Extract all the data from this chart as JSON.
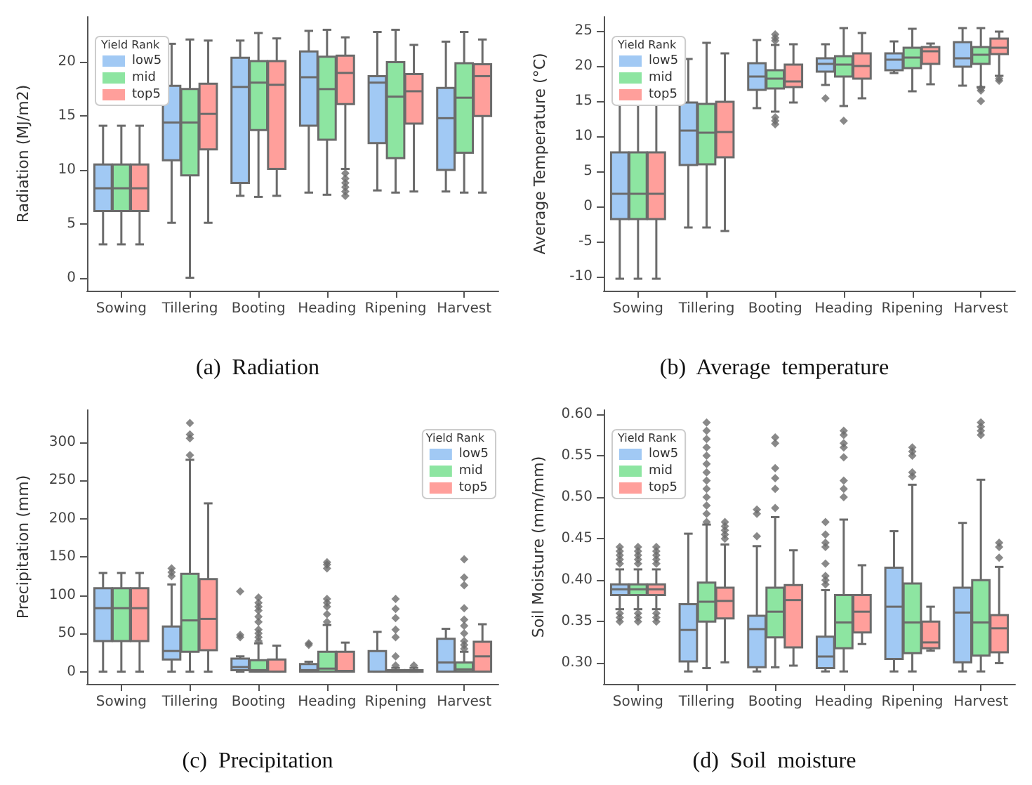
{
  "chart_data": [
    {
      "type": "box",
      "title": "(a)  Radiation",
      "ylabel": "Radiation (MJ/m2)",
      "legend_title": "Yield Rank",
      "legend": "top left",
      "grid": false,
      "categories": [
        "Sowing",
        "Tillering",
        "Booting",
        "Heading",
        "Ripening",
        "Harvest"
      ],
      "ylim": [
        -1.2,
        24.2
      ],
      "yticks": [
        0,
        5,
        10,
        15,
        20
      ],
      "series": [
        {
          "name": "low5",
          "color": "#a1c9f4",
          "boxes": [
            {
              "low": 3.1,
              "q1": 6.2,
              "median": 8.3,
              "q3": 10.5,
              "high": 14.1
            },
            {
              "low": 5.1,
              "q1": 10.9,
              "median": 14.4,
              "q3": 17.8,
              "high": 21.7
            },
            {
              "low": 7.6,
              "q1": 8.8,
              "median": 17.7,
              "q3": 20.4,
              "high": 22.0
            },
            {
              "low": 7.9,
              "q1": 14.1,
              "median": 18.6,
              "q3": 21.0,
              "high": 22.9
            },
            {
              "low": 8.1,
              "q1": 12.5,
              "median": 18.1,
              "q3": 18.7,
              "high": 22.8
            },
            {
              "low": 8.0,
              "q1": 10.0,
              "median": 14.8,
              "q3": 17.6,
              "high": 21.9
            }
          ]
        },
        {
          "name": "mid",
          "color": "#8de5a1",
          "boxes": [
            {
              "low": 3.1,
              "q1": 6.2,
              "median": 8.3,
              "q3": 10.5,
              "high": 14.1
            },
            {
              "low": 0,
              "q1": 9.5,
              "median": 14.4,
              "q3": 17.5,
              "high": 22.1
            },
            {
              "low": 7.5,
              "q1": 13.7,
              "median": 18.1,
              "q3": 20.1,
              "high": 22.7
            },
            {
              "low": 7.7,
              "q1": 12.8,
              "median": 17.5,
              "q3": 20.5,
              "high": 23.0
            },
            {
              "low": 7.9,
              "q1": 11.1,
              "median": 16.8,
              "q3": 20.0,
              "high": 23.0
            },
            {
              "low": 7.9,
              "q1": 11.6,
              "median": 16.7,
              "q3": 19.9,
              "high": 22.8
            }
          ]
        },
        {
          "name": "top5",
          "color": "#ff9f9b",
          "boxes": [
            {
              "low": 3.1,
              "q1": 6.2,
              "median": 8.3,
              "q3": 10.5,
              "high": 14.1
            },
            {
              "low": 5.1,
              "q1": 11.9,
              "median": 15.2,
              "q3": 18.0,
              "high": 22.0
            },
            {
              "low": 7.6,
              "q1": 10.1,
              "median": 17.9,
              "q3": 20.1,
              "high": 22.2
            },
            {
              "low": 10.1,
              "q1": 16.1,
              "median": 19.0,
              "q3": 20.6,
              "high": 22.3,
              "outliers": [
                7.6,
                8.0,
                8.4,
                8.8,
                9.2,
                9.7
              ]
            },
            {
              "low": 8.0,
              "q1": 14.3,
              "median": 17.3,
              "q3": 18.9,
              "high": 21.6
            },
            {
              "low": 7.9,
              "q1": 15.0,
              "median": 18.7,
              "q3": 19.8,
              "high": 22.1
            }
          ]
        }
      ]
    },
    {
      "type": "box",
      "title": "(b)  Average  temperature",
      "ylabel": "Average Temperature (°C)",
      "legend_title": "Yield Rank",
      "legend": "top left",
      "grid": false,
      "categories": [
        "Sowing",
        "Tillering",
        "Booting",
        "Heading",
        "Ripening",
        "Harvest"
      ],
      "ylim": [
        -12,
        27
      ],
      "yticks": [
        -10,
        -5,
        0,
        5,
        10,
        15,
        20,
        25
      ],
      "series": [
        {
          "name": "low5",
          "color": "#a1c9f4",
          "boxes": [
            {
              "low": -10.3,
              "q1": -1.8,
              "median": 1.8,
              "q3": 7.7,
              "high": 16.3
            },
            {
              "low": -3,
              "q1": 5.9,
              "median": 10.8,
              "q3": 14.8,
              "high": 21.0
            },
            {
              "low": 14.0,
              "q1": 16.6,
              "median": 18.5,
              "q3": 20.4,
              "high": 23.7
            },
            {
              "low": 17.3,
              "q1": 19.2,
              "median": 20.3,
              "q3": 21.1,
              "high": 23.1,
              "outliers": [
                15.4
              ]
            },
            {
              "low": 19.0,
              "q1": 19.4,
              "median": 20.9,
              "q3": 21.8,
              "high": 23.5
            },
            {
              "low": 17.2,
              "q1": 19.9,
              "median": 21.1,
              "q3": 23.4,
              "high": 25.4
            }
          ]
        },
        {
          "name": "mid",
          "color": "#8de5a1",
          "boxes": [
            {
              "low": -10.3,
              "q1": -1.8,
              "median": 1.8,
              "q3": 7.7,
              "high": 16.3
            },
            {
              "low": -3,
              "q1": 6.0,
              "median": 10.5,
              "q3": 14.6,
              "high": 23.3
            },
            {
              "low": 13.5,
              "q1": 16.8,
              "median": 18.2,
              "q3": 19.4,
              "high": 23.0,
              "outliers": [
                11.7,
                12.2,
                12.7,
                23.6,
                24.0,
                24.5
              ]
            },
            {
              "low": 14.3,
              "q1": 18.5,
              "median": 20.2,
              "q3": 21.4,
              "high": 25.4,
              "outliers": [
                12.2
              ]
            },
            {
              "low": 16.4,
              "q1": 19.7,
              "median": 21.2,
              "q3": 22.6,
              "high": 25.3
            },
            {
              "low": 17.0,
              "q1": 20.3,
              "median": 21.6,
              "q3": 22.7,
              "high": 25.4,
              "outliers": [
                15.0,
                16.5,
                16.8
              ]
            }
          ]
        },
        {
          "name": "top5",
          "color": "#ff9f9b",
          "boxes": [
            {
              "low": -10.3,
              "q1": -1.8,
              "median": 1.8,
              "q3": 7.7,
              "high": 16.3
            },
            {
              "low": -3.5,
              "q1": 7.0,
              "median": 10.6,
              "q3": 14.9,
              "high": 21.8
            },
            {
              "low": 14.8,
              "q1": 17.0,
              "median": 17.8,
              "q3": 20.2,
              "high": 23.1
            },
            {
              "low": 15.4,
              "q1": 18.2,
              "median": 20.0,
              "q3": 21.8,
              "high": 24.7
            },
            {
              "low": 17.4,
              "q1": 20.3,
              "median": 22.1,
              "q3": 22.7,
              "high": 23.2
            },
            {
              "low": 18.6,
              "q1": 21.7,
              "median": 22.6,
              "q3": 23.9,
              "high": 24.9,
              "outliers": [
                17.9,
                18.2
              ]
            }
          ]
        }
      ]
    },
    {
      "type": "box",
      "title": "(c)  Precipitation",
      "ylabel": "Precipitation (mm)",
      "legend_title": "Yield Rank",
      "legend": "top right",
      "grid": false,
      "categories": [
        "Sowing",
        "Tillering",
        "Booting",
        "Heading",
        "Ripening",
        "Harvest"
      ],
      "ylim": [
        -16,
        342
      ],
      "yticks": [
        0,
        50,
        100,
        150,
        200,
        250,
        300
      ],
      "series": [
        {
          "name": "low5",
          "color": "#a1c9f4",
          "boxes": [
            {
              "low": 0,
              "q1": 40,
              "median": 83,
              "q3": 109,
              "high": 129
            },
            {
              "low": 0,
              "q1": 16,
              "median": 27,
              "q3": 59,
              "high": 114,
              "outliers": [
                125,
                130,
                135
              ]
            },
            {
              "low": 0,
              "q1": 2,
              "median": 6,
              "q3": 17,
              "high": 20,
              "outliers": [
                45,
                48,
                105
              ]
            },
            {
              "low": 0,
              "q1": 0,
              "median": 2,
              "q3": 10,
              "high": 13,
              "outliers": [
                35,
                37
              ]
            },
            {
              "low": 0,
              "q1": 0,
              "median": 0,
              "q3": 27,
              "high": 52
            },
            {
              "low": 0,
              "q1": 0,
              "median": 12,
              "q3": 43,
              "high": 56
            }
          ]
        },
        {
          "name": "mid",
          "color": "#8de5a1",
          "boxes": [
            {
              "low": 0,
              "q1": 40,
              "median": 83,
              "q3": 109,
              "high": 129
            },
            {
              "low": 0,
              "q1": 26,
              "median": 67,
              "q3": 128,
              "high": 277,
              "outliers": [
                283,
                305,
                310,
                325
              ]
            },
            {
              "low": 0,
              "q1": 0,
              "median": 2,
              "q3": 15,
              "high": 37,
              "outliers": [
                40,
                45,
                50,
                55,
                65,
                72,
                80,
                85,
                90,
                97
              ]
            },
            {
              "low": 0,
              "q1": 0,
              "median": 4,
              "q3": 26,
              "high": 61,
              "outliers": [
                65,
                75,
                85,
                90,
                95,
                135,
                140,
                143
              ]
            },
            {
              "low": 0,
              "q1": 0,
              "median": 0,
              "q3": 2,
              "high": 5,
              "outliers": [
                8,
                20,
                45,
                55,
                70,
                82,
                95
              ]
            },
            {
              "low": 0,
              "q1": 0,
              "median": 3,
              "q3": 12,
              "high": 26,
              "outliers": [
                30,
                35,
                40,
                50,
                60,
                68,
                83,
                113,
                123,
                147
              ]
            }
          ]
        },
        {
          "name": "top5",
          "color": "#ff9f9b",
          "boxes": [
            {
              "low": 0,
              "q1": 40,
              "median": 83,
              "q3": 109,
              "high": 129
            },
            {
              "low": 0,
              "q1": 28,
              "median": 69,
              "q3": 121,
              "high": 220
            },
            {
              "low": 0,
              "q1": 0,
              "median": 0,
              "q3": 16,
              "high": 34
            },
            {
              "low": 0,
              "q1": 0,
              "median": 1,
              "q3": 26,
              "high": 38
            },
            {
              "low": 0,
              "q1": 0,
              "median": 0,
              "q3": 2,
              "high": 5,
              "outliers": [
                8
              ]
            },
            {
              "low": 0,
              "q1": 0,
              "median": 20,
              "q3": 39,
              "high": 62
            }
          ]
        }
      ]
    },
    {
      "type": "box",
      "title": "(d)  Soil  moisture",
      "ylabel": "Soil Moisture (mm/mm)",
      "legend_title": "Yield Rank",
      "legend": "top left",
      "grid": false,
      "categories": [
        "Sowing",
        "Tillering",
        "Booting",
        "Heading",
        "Ripening",
        "Harvest"
      ],
      "ylim": [
        0.275,
        0.605
      ],
      "yticks": [
        {
          "value": 0.3,
          "label": "0.30"
        },
        {
          "value": 0.35,
          "label": "0.35"
        },
        {
          "value": 0.4,
          "label": "0.40"
        },
        {
          "value": 0.45,
          "label": "0.45"
        },
        {
          "value": 0.5,
          "label": "0.50"
        },
        {
          "value": 0.55,
          "label": "0.55"
        },
        {
          "value": 0.6,
          "label": "0.60"
        }
      ],
      "series": [
        {
          "name": "low5",
          "color": "#a1c9f4",
          "boxes": [
            {
              "low": 0.365,
              "q1": 0.382,
              "median": 0.389,
              "q3": 0.395,
              "high": 0.413,
              "outliers": [
                0.35,
                0.355,
                0.36,
                0.42,
                0.425,
                0.43,
                0.435,
                0.44
              ]
            },
            {
              "low": 0.29,
              "q1": 0.302,
              "median": 0.34,
              "q3": 0.371,
              "high": 0.456
            },
            {
              "low": 0.29,
              "q1": 0.295,
              "median": 0.341,
              "q3": 0.357,
              "high": 0.441,
              "outliers": [
                0.453,
                0.48,
                0.485
              ]
            },
            {
              "low": 0.29,
              "q1": 0.294,
              "median": 0.308,
              "q3": 0.332,
              "high": 0.388,
              "outliers": [
                0.395,
                0.4,
                0.405,
                0.42,
                0.44,
                0.445,
                0.455,
                0.47
              ]
            },
            {
              "low": 0.29,
              "q1": 0.305,
              "median": 0.368,
              "q3": 0.415,
              "high": 0.459
            },
            {
              "low": 0.29,
              "q1": 0.301,
              "median": 0.361,
              "q3": 0.391,
              "high": 0.469
            }
          ]
        },
        {
          "name": "mid",
          "color": "#8de5a1",
          "boxes": [
            {
              "low": 0.365,
              "q1": 0.382,
              "median": 0.389,
              "q3": 0.395,
              "high": 0.413,
              "outliers": [
                0.35,
                0.355,
                0.36,
                0.42,
                0.425,
                0.43,
                0.435,
                0.44
              ]
            },
            {
              "low": 0.294,
              "q1": 0.35,
              "median": 0.374,
              "q3": 0.397,
              "high": 0.467,
              "outliers": [
                0.47,
                0.48,
                0.49,
                0.5,
                0.51,
                0.52,
                0.53,
                0.54,
                0.55,
                0.56,
                0.57,
                0.58,
                0.59
              ]
            },
            {
              "low": 0.295,
              "q1": 0.331,
              "median": 0.362,
              "q3": 0.391,
              "high": 0.476,
              "outliers": [
                0.487,
                0.51,
                0.523,
                0.535,
                0.565,
                0.572
              ]
            },
            {
              "low": 0.29,
              "q1": 0.318,
              "median": 0.349,
              "q3": 0.382,
              "high": 0.473,
              "outliers": [
                0.5,
                0.51,
                0.52,
                0.548,
                0.56,
                0.565,
                0.575,
                0.58
              ]
            },
            {
              "low": 0.29,
              "q1": 0.312,
              "median": 0.349,
              "q3": 0.396,
              "high": 0.515,
              "outliers": [
                0.525,
                0.53,
                0.55,
                0.555,
                0.56
              ]
            },
            {
              "low": 0.29,
              "q1": 0.309,
              "median": 0.349,
              "q3": 0.4,
              "high": 0.521,
              "outliers": [
                0.575,
                0.58,
                0.585,
                0.59
              ]
            }
          ]
        },
        {
          "name": "top5",
          "color": "#ff9f9b",
          "boxes": [
            {
              "low": 0.365,
              "q1": 0.382,
              "median": 0.389,
              "q3": 0.395,
              "high": 0.413,
              "outliers": [
                0.35,
                0.355,
                0.36,
                0.42,
                0.425,
                0.43,
                0.435,
                0.44
              ]
            },
            {
              "low": 0.301,
              "q1": 0.354,
              "median": 0.375,
              "q3": 0.391,
              "high": 0.443,
              "outliers": [
                0.45,
                0.455,
                0.46,
                0.465,
                0.47
              ]
            },
            {
              "low": 0.297,
              "q1": 0.319,
              "median": 0.376,
              "q3": 0.394,
              "high": 0.436
            },
            {
              "low": 0.323,
              "q1": 0.337,
              "median": 0.362,
              "q3": 0.382,
              "high": 0.418
            },
            {
              "low": 0.315,
              "q1": 0.318,
              "median": 0.325,
              "q3": 0.35,
              "high": 0.368
            },
            {
              "low": 0.3,
              "q1": 0.313,
              "median": 0.342,
              "q3": 0.358,
              "high": 0.416,
              "outliers": [
                0.427,
                0.44,
                0.445
              ]
            }
          ]
        }
      ]
    }
  ]
}
